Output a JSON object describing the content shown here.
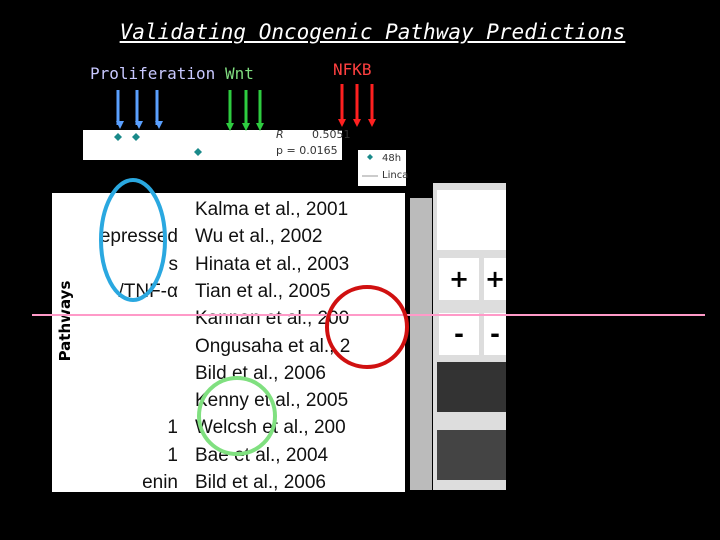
{
  "header": {
    "title": "Validating Oncogenic Pathway Predictions"
  },
  "labels": {
    "proliferation": "Proliferation",
    "wnt": "Wnt",
    "nfkb": "NFKB",
    "pathways": "Pathways"
  },
  "plot": {
    "r_label": "R",
    "r_value": "0.5051",
    "p_text": "p = 0.0165",
    "legend": [
      "48h",
      "Linca"
    ]
  },
  "table": {
    "rows": [
      {
        "right": "Kalma et al., 2001"
      },
      {
        "left": "epressed",
        "right": "Wu et al., 2002"
      },
      {
        "left": "s",
        "right": "Hinata et al., 2003"
      },
      {
        "left": "/TNF-α",
        "right": "Tian et al., 2005"
      },
      {
        "right": "Kannan et al., 200"
      },
      {
        "right": "Ongusaha et al., 2"
      },
      {
        "right": "Bild et al., 2006"
      },
      {
        "right": "Kenny et al., 2005"
      },
      {
        "left": "1",
        "right": "Welcsh et al., 200"
      },
      {
        "left": "1",
        "right": "Bae et al., 2004"
      },
      {
        "left": "enin",
        "right": "Bild et al., 2006"
      }
    ]
  },
  "gel": {
    "signs": [
      "+",
      "+",
      "-",
      "-"
    ]
  }
}
